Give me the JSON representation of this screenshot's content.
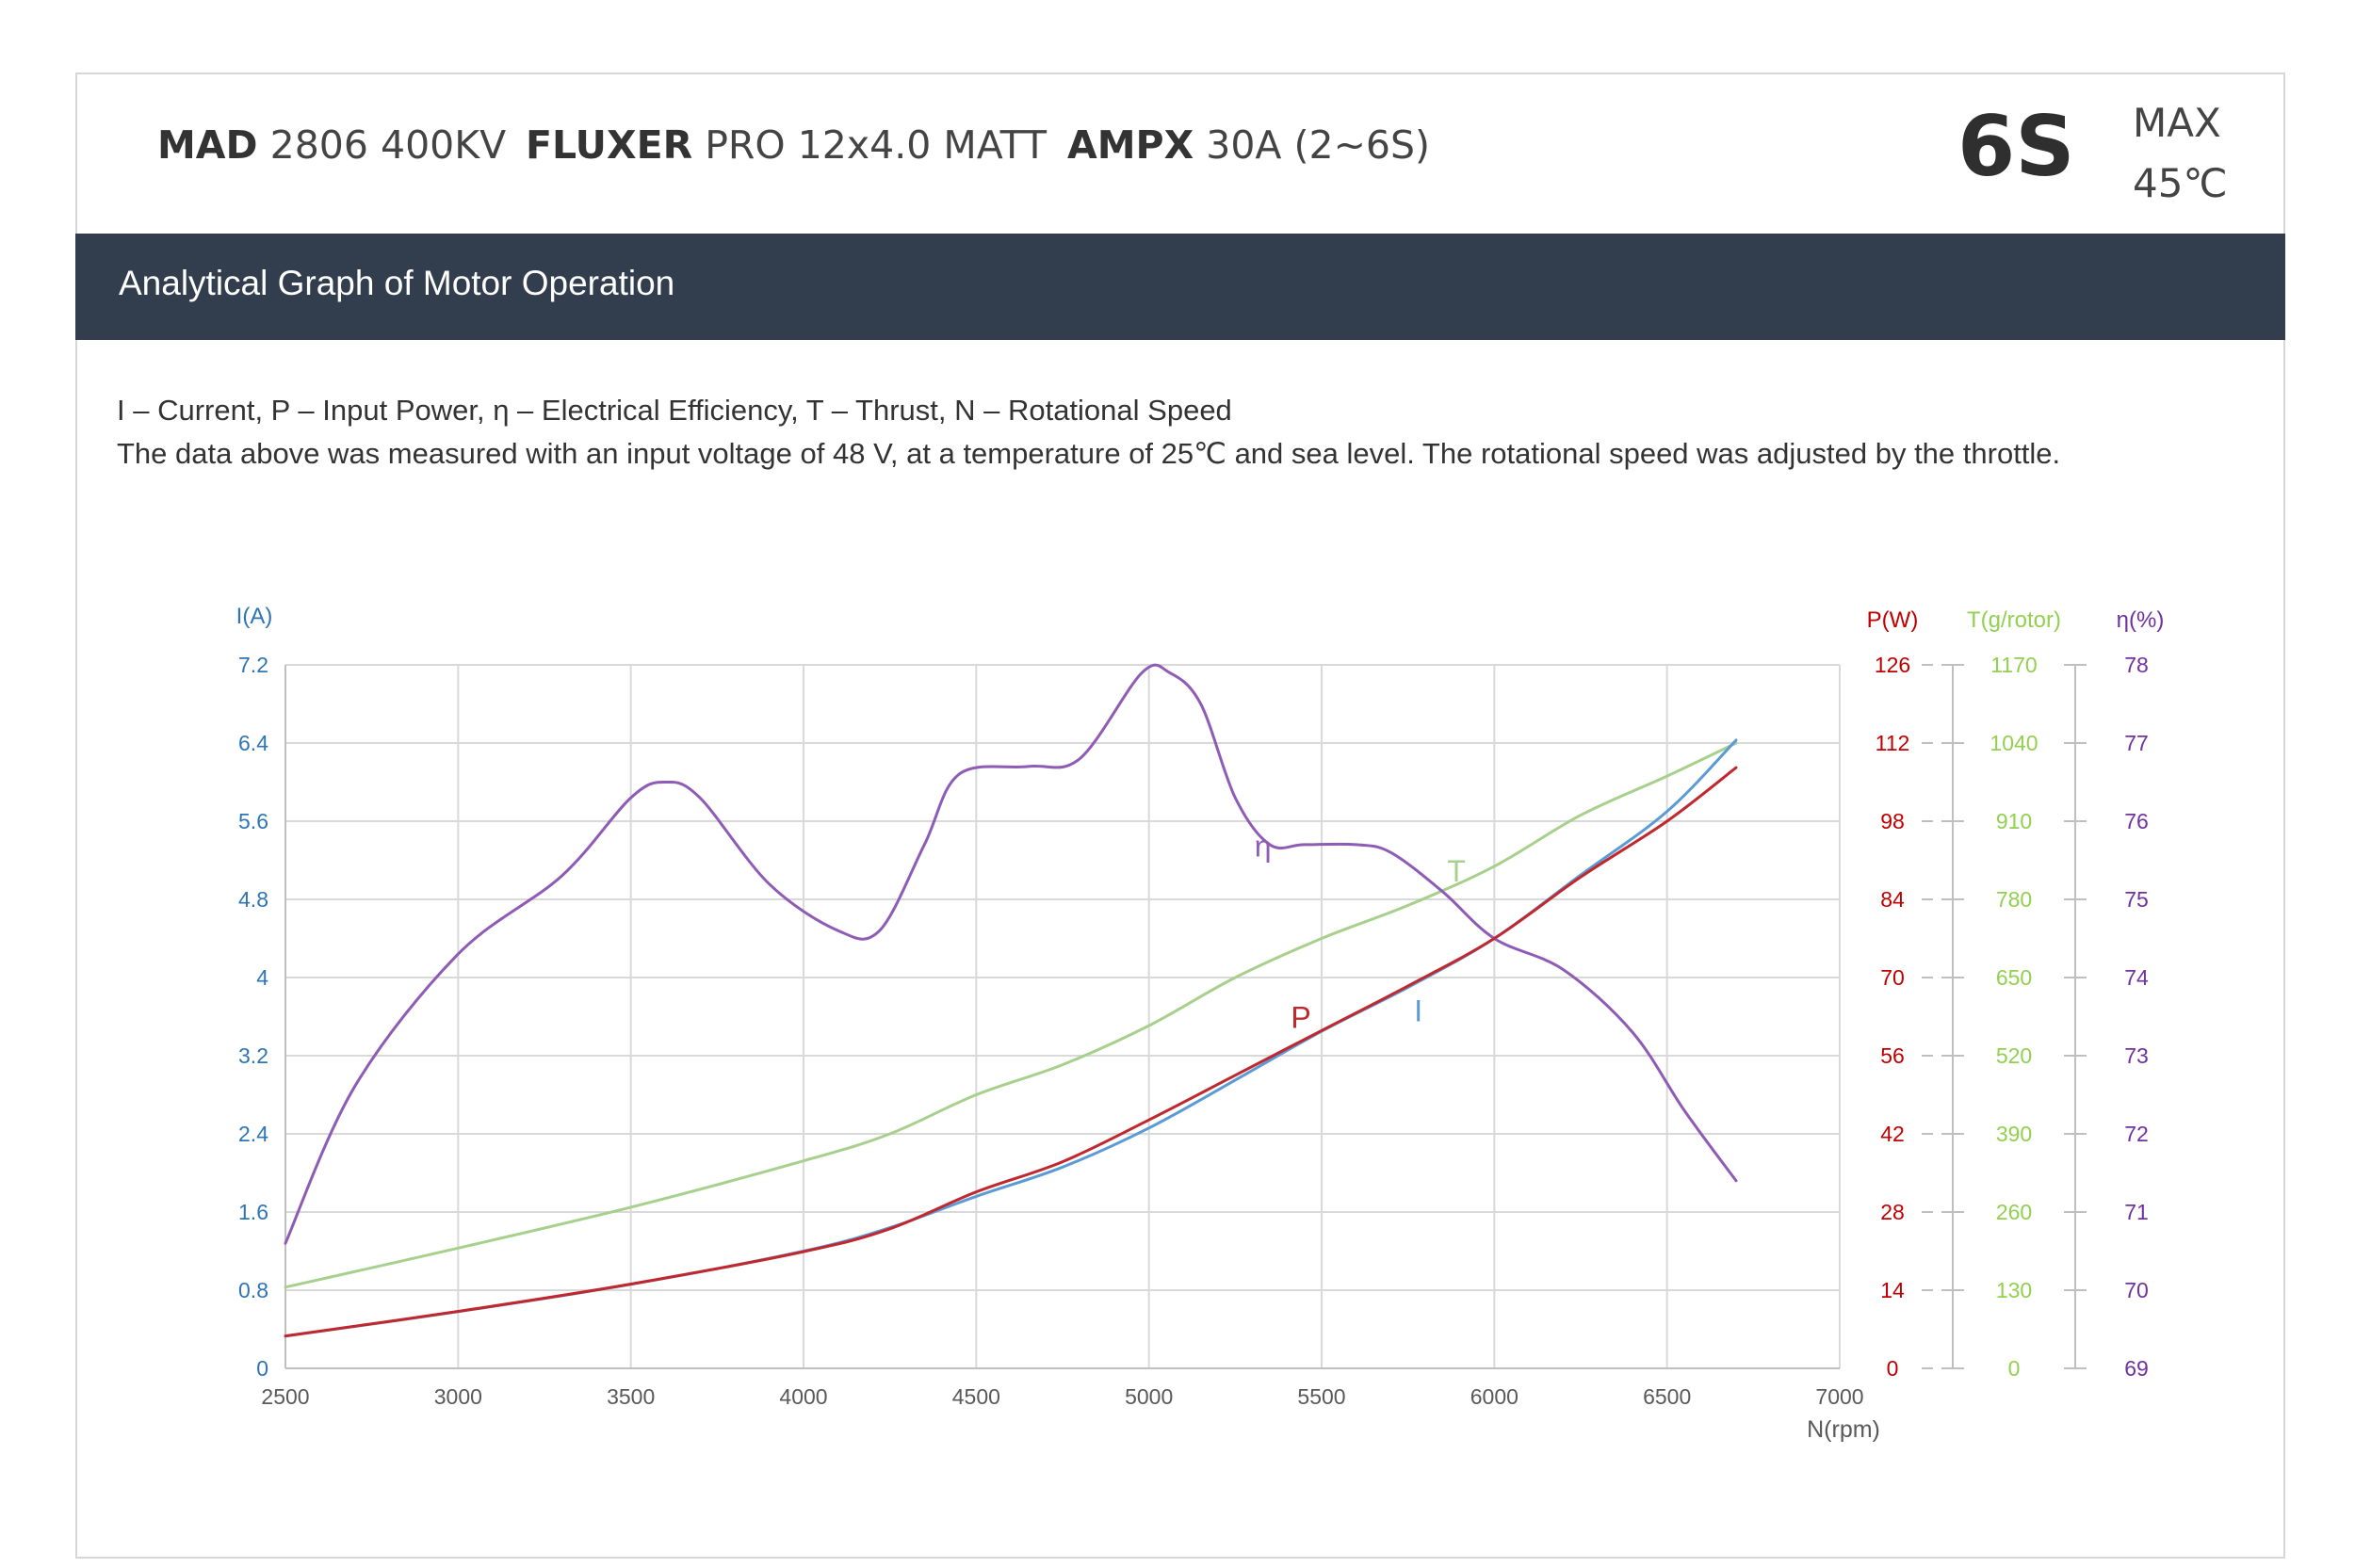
{
  "header": {
    "motor": {
      "brand": "MAD",
      "model": "2806 400KV"
    },
    "propeller": {
      "brand": "FLUXER",
      "model": "PRO 12x4.0 MATT"
    },
    "esc": {
      "brand": "AMPX",
      "model": "30A (2~6S)"
    },
    "cells": "6S",
    "max_label": "MAX",
    "max_temp": "45℃"
  },
  "banner": {
    "title": "Analytical Graph of Motor Operation"
  },
  "notes": {
    "legend": "I – Current, P – Input Power, η – Electrical Efficiency, T – Thrust,   N – Rotational Speed",
    "conditions": "The data above was measured with an input voltage of 48 V, at a temperature of 25℃ and sea level. The rotational speed was adjusted by the throttle."
  },
  "chart_data": {
    "type": "line",
    "x_label": "N(rpm)",
    "x_ticks": [
      "2500",
      "3000",
      "3500",
      "4000",
      "4500",
      "5000",
      "5500",
      "6000",
      "6500",
      "7000"
    ],
    "xlim": [
      2500,
      7000
    ],
    "grid": true,
    "axes": [
      {
        "id": "I",
        "label": "I(A)",
        "color": "#2e75b6",
        "min": 0,
        "max": 7.2,
        "ticks": [
          "0",
          "0.8",
          "1.6",
          "2.4",
          "3.2",
          "4",
          "4.8",
          "5.6",
          "6.4",
          "7.2"
        ]
      },
      {
        "id": "P",
        "label": "P(W)",
        "color": "#c00000",
        "min": 0,
        "max": 126,
        "ticks": [
          "0",
          "14",
          "28",
          "42",
          "56",
          "70",
          "84",
          "98",
          "112",
          "126"
        ]
      },
      {
        "id": "T",
        "label": "T(g/rotor)",
        "color": "#92d050",
        "min": 0,
        "max": 1170,
        "ticks": [
          "0",
          "130",
          "260",
          "390",
          "520",
          "650",
          "780",
          "910",
          "1040",
          "1170"
        ]
      },
      {
        "id": "eta",
        "label": "η(%)",
        "color": "#7030a0",
        "min": 69,
        "max": 78,
        "ticks": [
          "69",
          "70",
          "71",
          "72",
          "73",
          "74",
          "75",
          "76",
          "77",
          "78"
        ]
      }
    ],
    "series": [
      {
        "name": "I",
        "axis": "I",
        "color": "#5b9bd5",
        "label_at": [
          5780,
          3.55
        ],
        "x": [
          2500,
          3000,
          3500,
          4000,
          4250,
          4500,
          4750,
          5000,
          5250,
          5500,
          5750,
          6000,
          6250,
          6500,
          6700
        ],
        "y": [
          0.33,
          0.58,
          0.86,
          1.2,
          1.44,
          1.76,
          2.06,
          2.46,
          2.95,
          3.45,
          3.9,
          4.4,
          5.05,
          5.7,
          6.43
        ]
      },
      {
        "name": "P",
        "axis": "P",
        "color": "#c0282d",
        "label_at": [
          5440,
          61
        ],
        "x": [
          2500,
          3000,
          3500,
          4000,
          4250,
          4500,
          4750,
          5000,
          5250,
          5500,
          5750,
          6000,
          6250,
          6500,
          6700
        ],
        "y": [
          5.8,
          10.2,
          15.1,
          20.9,
          25,
          31.6,
          37,
          44.5,
          52.5,
          60.5,
          68.5,
          77,
          88,
          98,
          107.6
        ]
      },
      {
        "name": "T",
        "axis": "T",
        "color": "#a8d08d",
        "label_at": [
          5890,
          810
        ],
        "x": [
          2500,
          3000,
          3500,
          4000,
          4250,
          4500,
          4750,
          5000,
          5250,
          5500,
          5750,
          6000,
          6250,
          6500,
          6700
        ],
        "y": [
          135,
          200,
          268,
          345,
          390,
          455,
          505,
          570,
          650,
          715,
          770,
          835,
          920,
          985,
          1040
        ]
      },
      {
        "name": "η",
        "axis": "eta",
        "color": "#8e5bb5",
        "label_at": [
          5330,
          75.55
        ],
        "x": [
          2500,
          2700,
          3000,
          3300,
          3500,
          3600,
          3700,
          3900,
          4100,
          4220,
          4350,
          4450,
          4650,
          4800,
          4980,
          5060,
          5150,
          5250,
          5350,
          5450,
          5600,
          5700,
          5850,
          6000,
          6200,
          6400,
          6550,
          6700
        ],
        "y": [
          70.6,
          72.6,
          74.3,
          75.3,
          76.3,
          76.5,
          76.3,
          75.2,
          74.6,
          74.6,
          75.7,
          76.6,
          76.7,
          76.8,
          77.9,
          77.9,
          77.5,
          76.3,
          75.7,
          75.7,
          75.7,
          75.6,
          75.1,
          74.5,
          74.1,
          73.3,
          72.3,
          71.4
        ]
      }
    ]
  }
}
